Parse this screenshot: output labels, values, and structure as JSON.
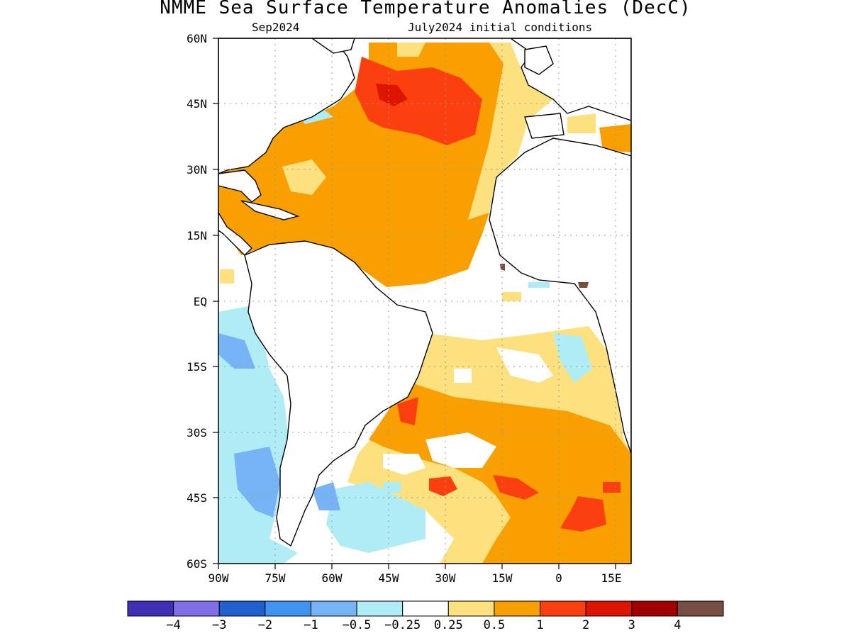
{
  "title": "NMME Sea Surface Temperature Anomalies (DecC)",
  "subtitle_left": "Sep2024",
  "subtitle_right": "July2024 initial conditions",
  "latitude_labels": [
    "60N",
    "45N",
    "30N",
    "15N",
    "EQ",
    "15S",
    "30S",
    "45S",
    "60S"
  ],
  "longitude_labels": [
    "90W",
    "75W",
    "60W",
    "45W",
    "30W",
    "15W",
    "0",
    "15E"
  ],
  "colorbar": {
    "labels": [
      "−4",
      "−3",
      "−2",
      "−1",
      "−0.5",
      "−0.25",
      "0.25",
      "0.5",
      "1",
      "2",
      "3",
      "4"
    ],
    "colors": [
      "#3f2fb5",
      "#7f6fe8",
      "#1f5fcf",
      "#3f94ef",
      "#77b4f5",
      "#b0ecf5",
      "#ffffff",
      "#fde17f",
      "#fa9f00",
      "#fb3f0f",
      "#dd1500",
      "#a10000",
      "#784d42"
    ]
  },
  "map_extent": {
    "lon": [
      -90,
      18
    ],
    "lat": [
      -60,
      60
    ]
  }
}
